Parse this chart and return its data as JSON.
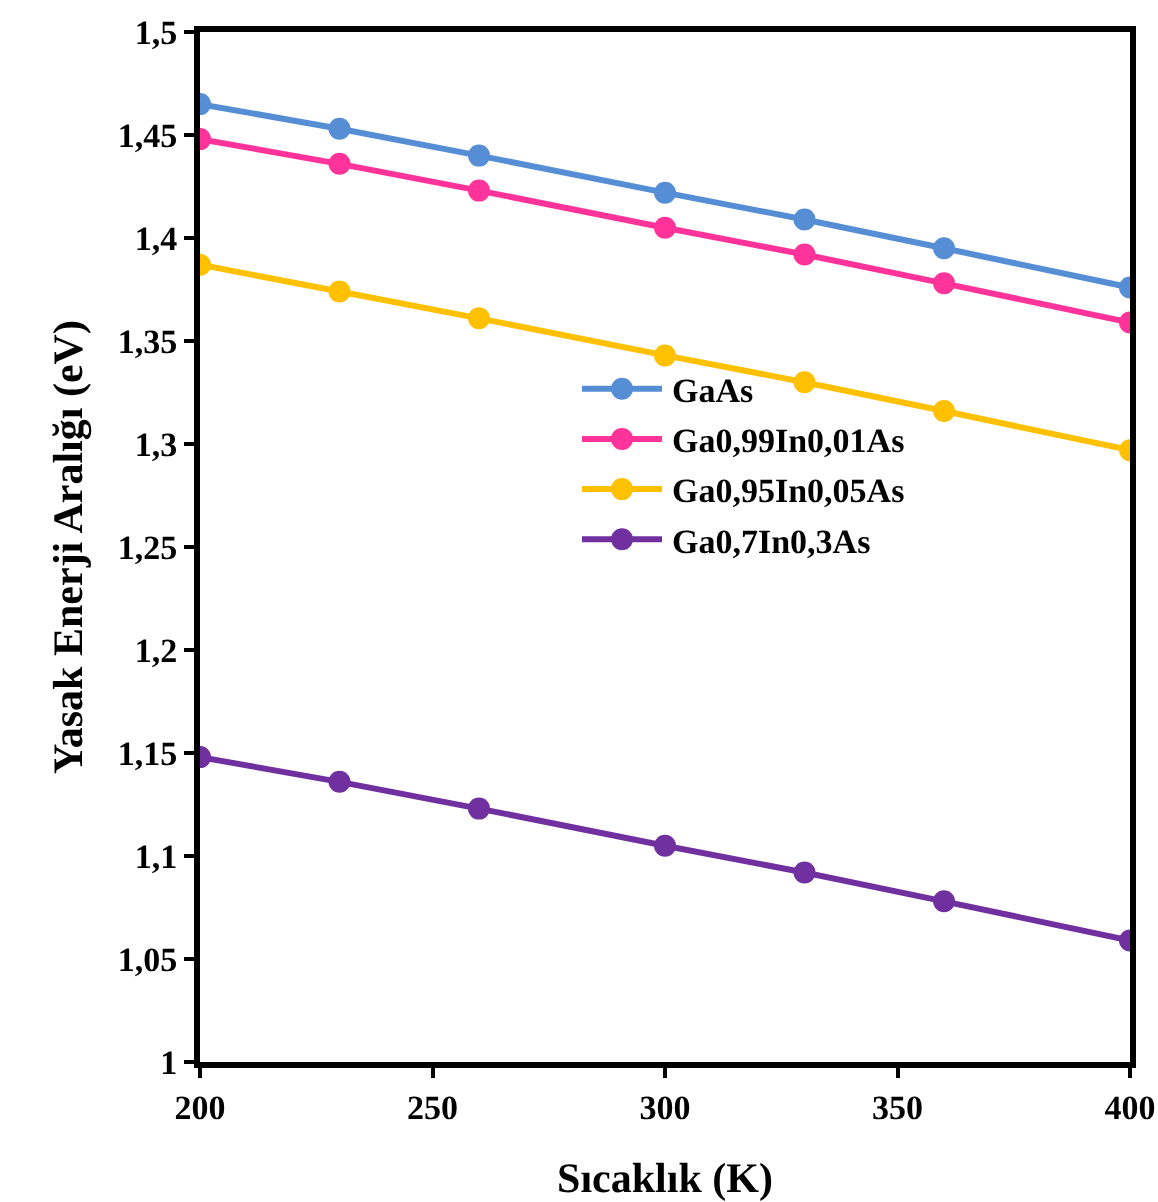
{
  "chart_data": {
    "type": "line",
    "xlabel": "Sıcaklık (K)",
    "ylabel": "Yasak Enerji Aralığı (eV)",
    "x": [
      200,
      230,
      260,
      300,
      330,
      360,
      400
    ],
    "series": [
      {
        "name": "GaAs",
        "color": "#558ed5",
        "values": [
          1.465,
          1.453,
          1.44,
          1.422,
          1.409,
          1.395,
          1.376
        ]
      },
      {
        "name": "Ga0,99In0,01As",
        "color": "#ff3399",
        "values": [
          1.448,
          1.436,
          1.423,
          1.405,
          1.392,
          1.378,
          1.359
        ]
      },
      {
        "name": "Ga0,95In0,05As",
        "color": "#ffc000",
        "values": [
          1.387,
          1.374,
          1.361,
          1.343,
          1.33,
          1.316,
          1.297
        ]
      },
      {
        "name": "Ga0,7In0,3As",
        "color": "#7030a0",
        "values": [
          1.148,
          1.136,
          1.123,
          1.105,
          1.092,
          1.078,
          1.059
        ]
      }
    ],
    "xlim": [
      200,
      400
    ],
    "xticks": [
      200,
      250,
      300,
      350,
      400
    ],
    "ylim": [
      1,
      1.5
    ],
    "yticks": [
      {
        "value": 1,
        "label": "1"
      },
      {
        "value": 1.05,
        "label": "1,05"
      },
      {
        "value": 1.1,
        "label": "1,1"
      },
      {
        "value": 1.15,
        "label": "1,15"
      },
      {
        "value": 1.2,
        "label": "1,2"
      },
      {
        "value": 1.25,
        "label": "1,25"
      },
      {
        "value": 1.3,
        "label": "1,3"
      },
      {
        "value": 1.35,
        "label": "1,35"
      },
      {
        "value": 1.4,
        "label": "1,4"
      },
      {
        "value": 1.45,
        "label": "1,45"
      },
      {
        "value": 1.5,
        "label": "1,5"
      }
    ],
    "grid": false,
    "legend": "right",
    "marker": "circle",
    "line_style": "solid"
  }
}
